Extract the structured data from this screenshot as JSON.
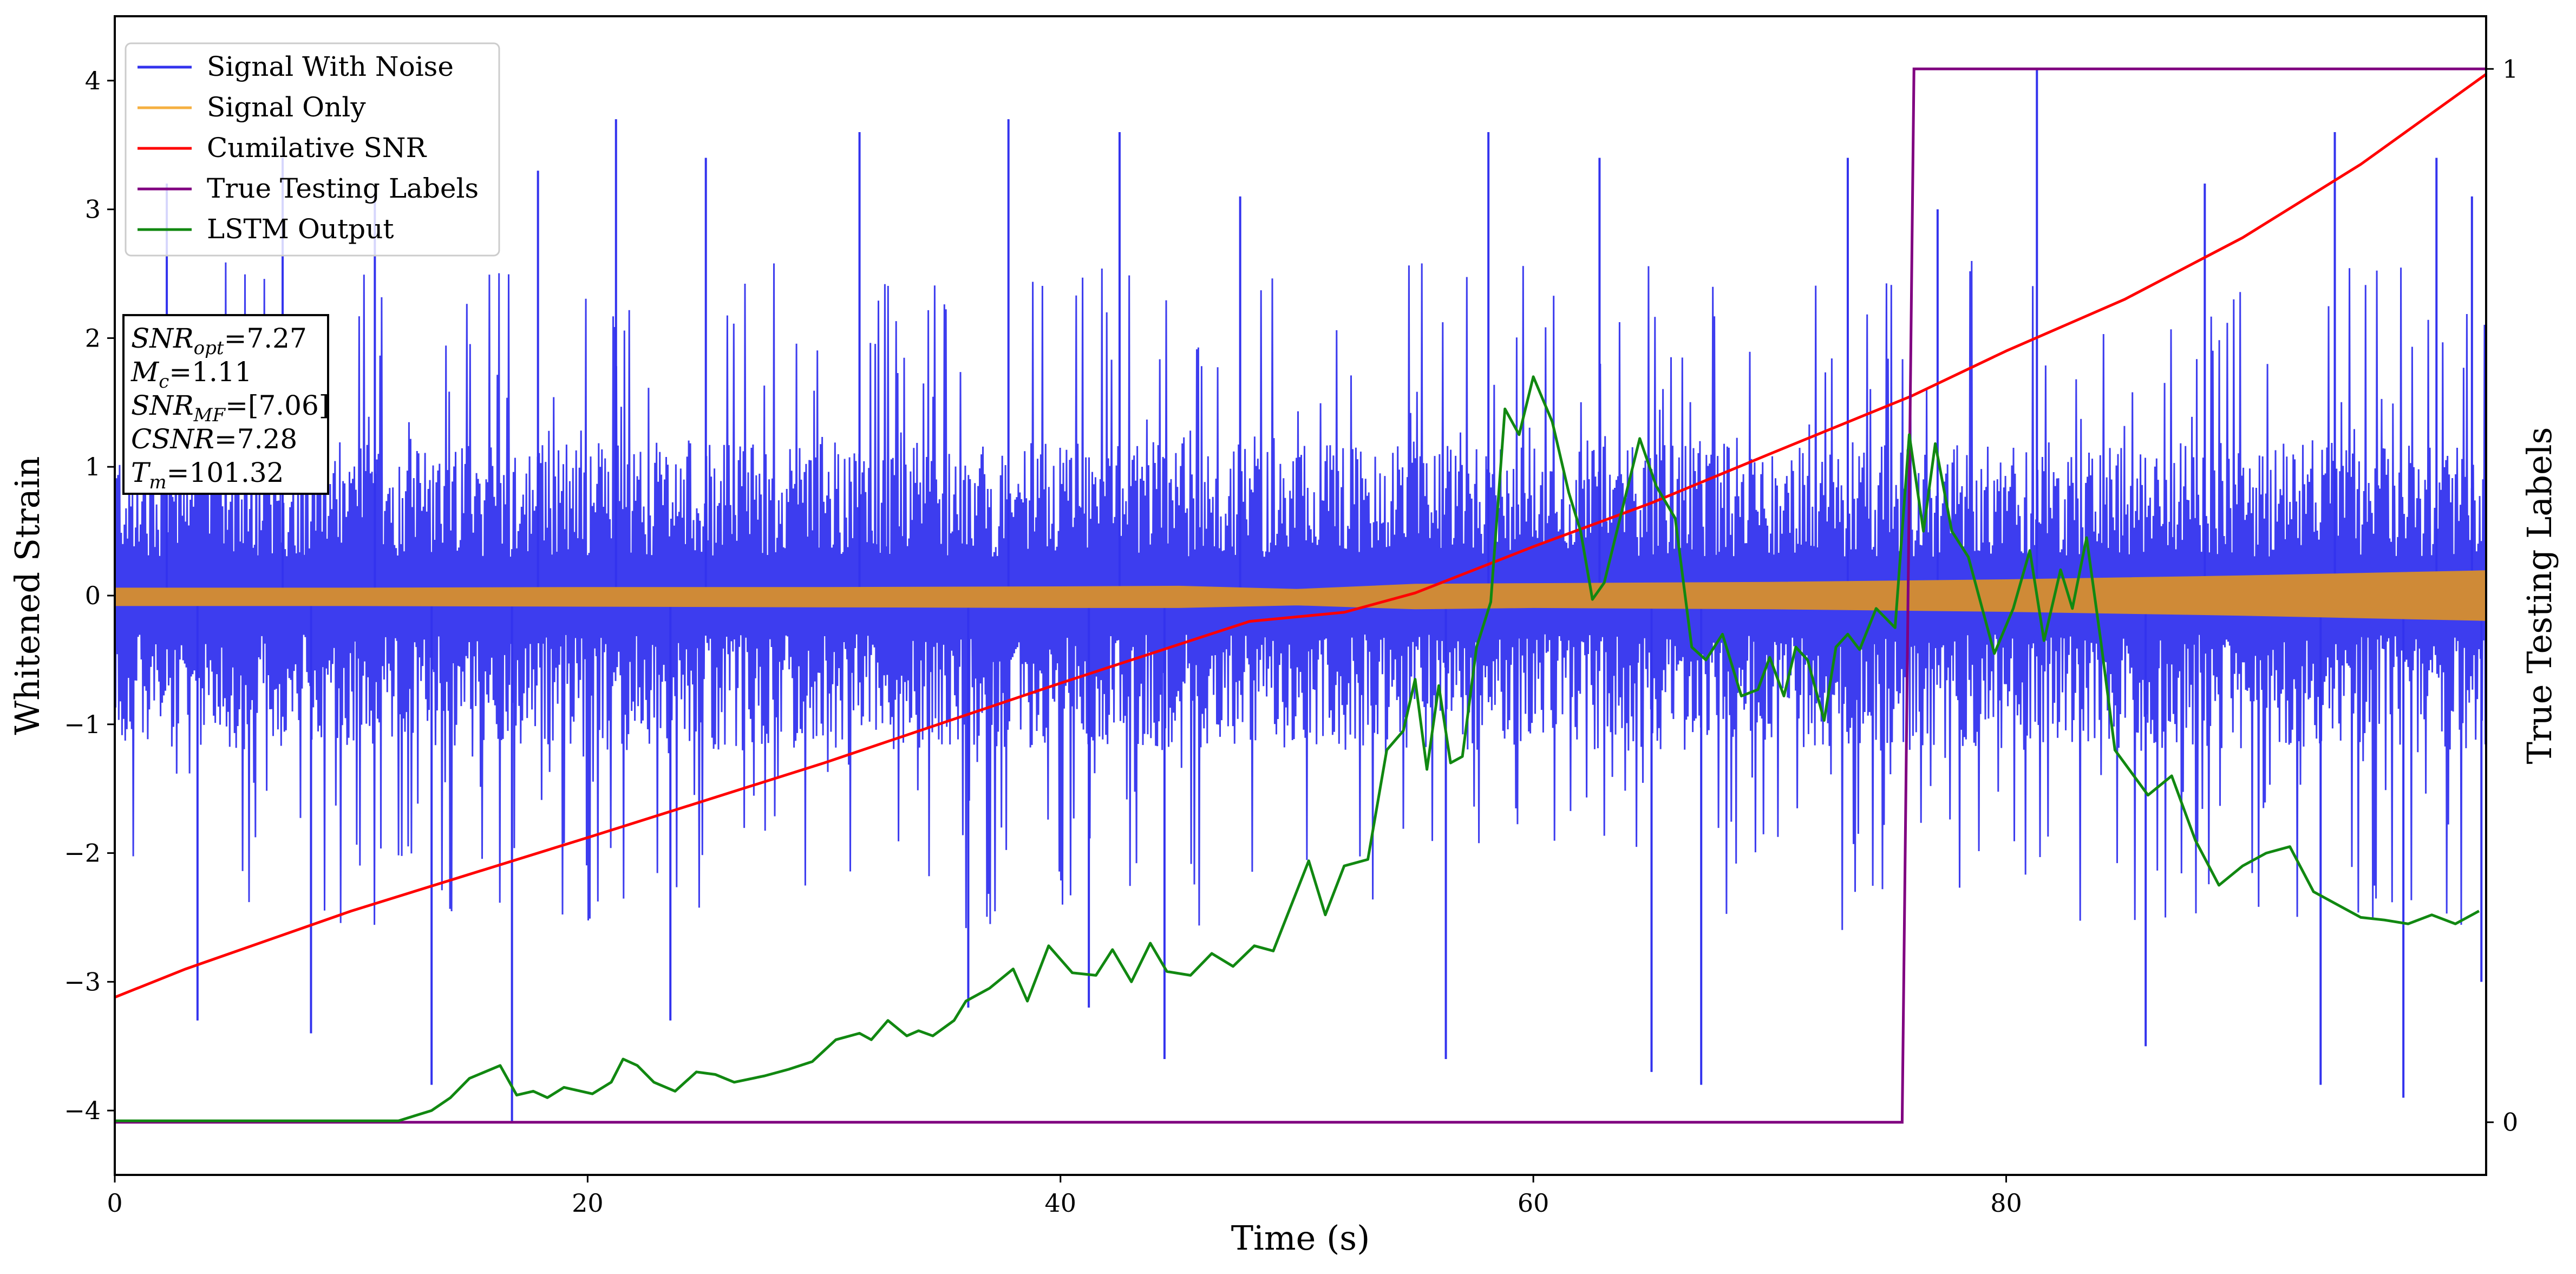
{
  "chart_data": {
    "type": "line",
    "title": "",
    "xlabel": "Time (s)",
    "ylabel": "Whitened Strain",
    "y2label": "True Testing Labels",
    "xlim": [
      0,
      100.3
    ],
    "ylim": [
      -4.5,
      4.5
    ],
    "y2lim": [
      -0.05,
      1.05
    ],
    "xticks": [
      0,
      20,
      40,
      60,
      80
    ],
    "yticks": [
      -4,
      -3,
      -2,
      -1,
      0,
      1,
      2,
      3,
      4
    ],
    "y2ticks": [
      0,
      1
    ],
    "grid": false,
    "legend_position": "top-left",
    "legend": [
      {
        "label": "Signal With Noise",
        "color": "#3333ee"
      },
      {
        "label": "Signal Only",
        "color": "#f5b041"
      },
      {
        "label": "Cumilative SNR",
        "color": "#ff0000"
      },
      {
        "label": "True Testing Labels",
        "color": "#800080"
      },
      {
        "label": "LSTM Output",
        "color": "#118811"
      }
    ],
    "annotation": {
      "lines": [
        {
          "var": "SNR",
          "sub": "opt",
          "val": "=7.27"
        },
        {
          "var": "M",
          "sub": "c",
          "val": "=1.11"
        },
        {
          "var": "SNR",
          "sub": "MF",
          "val": "=[7.06]"
        },
        {
          "var": "CSNR",
          "sub": "",
          "val": "=7.28"
        },
        {
          "var": "T",
          "sub": "m",
          "val": "=101.32"
        }
      ]
    },
    "series": [
      {
        "name": "Signal With Noise",
        "axis": "left",
        "color": "#3333ee",
        "style": "dense-noise",
        "band": {
          "upper": 1.2,
          "lower": -1.2
        },
        "spikes": [
          [
            2.2,
            3.2
          ],
          [
            3.5,
            -3.3
          ],
          [
            7.1,
            3.4
          ],
          [
            8.3,
            -3.4
          ],
          [
            11.0,
            3.1
          ],
          [
            13.4,
            -3.8
          ],
          [
            16.8,
            -4.1
          ],
          [
            17.9,
            3.3
          ],
          [
            21.2,
            3.7
          ],
          [
            23.5,
            -3.3
          ],
          [
            25.0,
            3.4
          ],
          [
            31.5,
            3.6
          ],
          [
            36.1,
            -3.2
          ],
          [
            37.8,
            3.7
          ],
          [
            41.2,
            -3.2
          ],
          [
            42.5,
            3.6
          ],
          [
            44.4,
            -3.6
          ],
          [
            47.6,
            3.1
          ],
          [
            56.3,
            -3.6
          ],
          [
            58.1,
            3.6
          ],
          [
            62.8,
            3.4
          ],
          [
            65.0,
            -3.7
          ],
          [
            67.1,
            -3.8
          ],
          [
            73.3,
            3.4
          ],
          [
            77.1,
            3.0
          ],
          [
            81.3,
            4.1
          ],
          [
            85.9,
            -3.5
          ],
          [
            88.4,
            3.2
          ],
          [
            93.3,
            -3.8
          ],
          [
            93.9,
            3.6
          ],
          [
            96.8,
            -3.9
          ],
          [
            98.2,
            3.4
          ],
          [
            99.7,
            3.1
          ],
          [
            100.1,
            -3.0
          ]
        ]
      },
      {
        "name": "Signal Only",
        "axis": "left",
        "color": "#cf8a37",
        "style": "band",
        "x": [
          0,
          10,
          20,
          30,
          40,
          45,
          50,
          55,
          60,
          70,
          80,
          90,
          100.3
        ],
        "upper": [
          0.055,
          0.055,
          0.06,
          0.06,
          0.065,
          0.07,
          0.045,
          0.085,
          0.09,
          0.1,
          0.12,
          0.15,
          0.19
        ],
        "lower": [
          -0.075,
          -0.075,
          -0.08,
          -0.085,
          -0.09,
          -0.09,
          -0.07,
          -0.1,
          -0.09,
          -0.1,
          -0.12,
          -0.15,
          -0.19
        ]
      },
      {
        "name": "Cumilative SNR",
        "axis": "left",
        "color": "#ff0000",
        "x": [
          0,
          3,
          10,
          20,
          30,
          40,
          48,
          52,
          55,
          60,
          65,
          70,
          76,
          80,
          85,
          90,
          95,
          100.3
        ],
        "y": [
          -3.12,
          -2.9,
          -2.45,
          -1.88,
          -1.3,
          -0.68,
          -0.2,
          -0.13,
          0.02,
          0.38,
          0.72,
          1.1,
          1.55,
          1.9,
          2.3,
          2.78,
          3.35,
          4.05
        ]
      },
      {
        "name": "True Testing Labels",
        "axis": "right",
        "color": "#800080",
        "x": [
          0,
          75.6,
          76.1,
          100.3
        ],
        "y": [
          0,
          0,
          1,
          1
        ]
      },
      {
        "name": "LSTM Output",
        "axis": "left",
        "color": "#118811",
        "x": [
          0,
          12,
          13.4,
          14.2,
          15.0,
          16.3,
          17.0,
          17.7,
          18.3,
          19.0,
          20.2,
          21.0,
          21.5,
          22.1,
          22.8,
          23.7,
          24.6,
          25.4,
          26.2,
          27.5,
          28.5,
          29.5,
          30.5,
          31.5,
          32.0,
          32.7,
          33.5,
          34.0,
          34.6,
          35.5,
          36.0,
          37.0,
          38.0,
          38.6,
          39.5,
          40.5,
          41.5,
          42.2,
          43.0,
          43.8,
          44.5,
          45.5,
          46.4,
          47.3,
          48.2,
          49.0,
          50.5,
          51.2,
          52.0,
          53.0,
          53.8,
          54.5,
          55.0,
          55.5,
          56.0,
          56.5,
          57.0,
          57.6,
          58.2,
          58.8,
          59.4,
          60.0,
          60.8,
          61.5,
          62.0,
          62.5,
          63.0,
          63.8,
          64.5,
          65.2,
          66.0,
          66.7,
          67.3,
          68.0,
          68.8,
          69.5,
          70.0,
          70.6,
          71.1,
          71.6,
          72.3,
          72.8,
          73.3,
          73.8,
          74.5,
          75.3,
          75.9,
          76.5,
          77.0,
          77.7,
          78.4,
          79.5,
          80.3,
          81.0,
          81.6,
          82.3,
          82.8,
          83.4,
          84.0,
          84.6,
          85.2,
          86.0,
          87.0,
          88.0,
          89.0,
          90.0,
          91.0,
          92.0,
          93.0,
          94.0,
          95.0,
          96.0,
          97.0,
          98.0,
          99.0,
          100.0
        ],
        "y": [
          -4.08,
          -4.08,
          -4.0,
          -3.9,
          -3.75,
          -3.65,
          -3.88,
          -3.85,
          -3.9,
          -3.82,
          -3.87,
          -3.78,
          -3.6,
          -3.65,
          -3.78,
          -3.85,
          -3.7,
          -3.72,
          -3.78,
          -3.73,
          -3.68,
          -3.62,
          -3.45,
          -3.4,
          -3.45,
          -3.3,
          -3.42,
          -3.38,
          -3.42,
          -3.3,
          -3.15,
          -3.05,
          -2.9,
          -3.15,
          -2.72,
          -2.93,
          -2.95,
          -2.75,
          -3.0,
          -2.7,
          -2.92,
          -2.95,
          -2.78,
          -2.88,
          -2.72,
          -2.76,
          -2.06,
          -2.48,
          -2.1,
          -2.05,
          -1.2,
          -1.05,
          -0.65,
          -1.35,
          -0.7,
          -1.3,
          -1.25,
          -0.4,
          -0.05,
          1.45,
          1.25,
          1.7,
          1.35,
          0.8,
          0.5,
          -0.03,
          0.1,
          0.7,
          1.22,
          0.85,
          0.6,
          -0.4,
          -0.5,
          -0.3,
          -0.78,
          -0.73,
          -0.48,
          -0.78,
          -0.4,
          -0.5,
          -0.97,
          -0.4,
          -0.3,
          -0.42,
          -0.1,
          -0.25,
          1.25,
          0.5,
          1.18,
          0.5,
          0.3,
          -0.45,
          -0.1,
          0.35,
          -0.35,
          0.2,
          -0.1,
          0.45,
          -0.35,
          -1.2,
          -1.35,
          -1.55,
          -1.4,
          -1.9,
          -2.25,
          -2.1,
          -2.0,
          -1.95,
          -2.3,
          -2.4,
          -2.5,
          -2.52,
          -2.55,
          -2.48,
          -2.55,
          -2.45
        ]
      }
    ]
  }
}
